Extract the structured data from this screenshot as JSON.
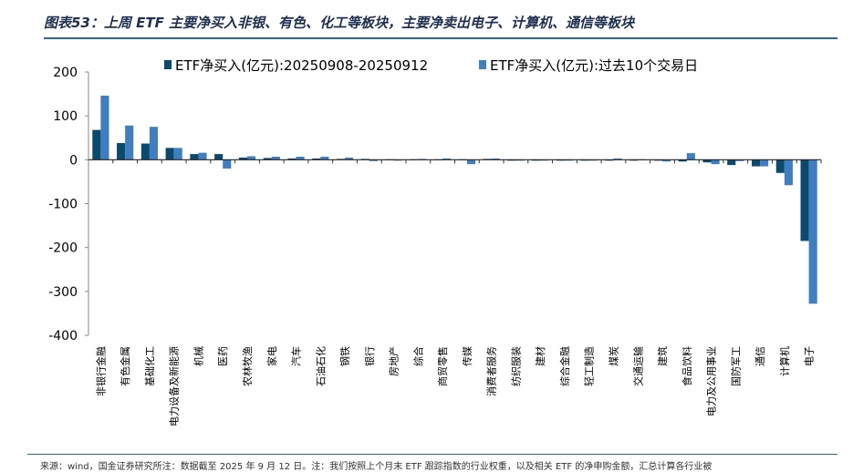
{
  "title": "图表53：上周 ETF 主要净买入非银、有色、化工等板块，主要净卖出电子、计算机、通信等板块",
  "footer": "来源：wind，国金证券研究所注：数据截至 2025 年 9 月 12 日。注：我们按照上个月末 ETF 跟踪指数的行业权重，以及相关 ETF 的净申购金额，汇总计算各行业被",
  "chart_data": {
    "type": "bar",
    "ylim": [
      -400,
      200
    ],
    "yticks": [
      200,
      100,
      0,
      -100,
      -200,
      -300,
      -400
    ],
    "legend_position": "top",
    "categories": [
      "非银行金融",
      "有色金属",
      "基础化工",
      "电力设备及新能源",
      "机械",
      "医药",
      "农林牧渔",
      "家电",
      "汽车",
      "石油石化",
      "钢铁",
      "银行",
      "房地产",
      "综合",
      "商贸零售",
      "传媒",
      "消费者服务",
      "纺织服装",
      "建材",
      "综合金融",
      "轻工制造",
      "煤炭",
      "交通运输",
      "建筑",
      "食品饮料",
      "电力及公用事业",
      "国防军工",
      "通信",
      "计算机",
      "电子"
    ],
    "series": [
      {
        "name": "ETF净买入(亿元):20250908-20250912",
        "color": "#0b4a6f",
        "values": [
          68,
          38,
          37,
          27,
          13,
          13,
          5,
          4,
          3,
          3,
          2,
          2,
          1,
          1,
          1,
          1,
          2,
          -1,
          -1,
          -1,
          -1,
          -1,
          -2,
          -2,
          -4,
          -6,
          -12,
          -15,
          -30,
          -185
        ]
      },
      {
        "name": "ETF净买入(亿元):过去10个交易日",
        "color": "#3f7fc1",
        "values": [
          146,
          78,
          75,
          27,
          16,
          -20,
          8,
          7,
          7,
          7,
          5,
          -3,
          -2,
          2,
          3,
          -10,
          3,
          -1,
          -1,
          -1,
          -1,
          3,
          1,
          -4,
          15,
          -10,
          -3,
          -15,
          -58,
          -328
        ]
      }
    ]
  }
}
